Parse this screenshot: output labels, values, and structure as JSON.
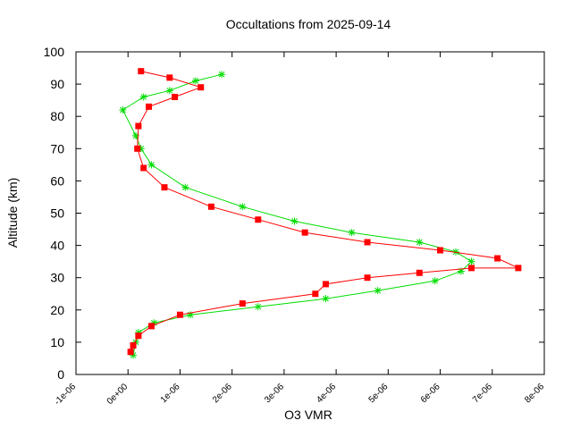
{
  "chart_data": {
    "type": "scatter",
    "title": "Occultations from 2025-09-14",
    "xlabel": "O3 VMR",
    "ylabel": "Altitude (km)",
    "xlim": [
      -1e-06,
      8e-06
    ],
    "ylim": [
      0,
      100
    ],
    "x_ticks": [
      -1e-06,
      0,
      1e-06,
      2e-06,
      3e-06,
      4e-06,
      5e-06,
      6e-06,
      7e-06,
      8e-06
    ],
    "x_tick_labels": [
      "-1e-06",
      "0e+00",
      "1e-06",
      "2e-06",
      "3e-06",
      "4e-06",
      "5e-06",
      "6e-06",
      "7e-06",
      "8e-06"
    ],
    "y_ticks": [
      0,
      10,
      20,
      30,
      40,
      50,
      60,
      70,
      80,
      90,
      100
    ],
    "y_tick_labels": [
      "0",
      "10",
      "20",
      "30",
      "40",
      "50",
      "60",
      "70",
      "80",
      "90",
      "100"
    ],
    "grid": false,
    "legend": "none",
    "series": [
      {
        "color": "#00dd00",
        "marker": "star",
        "x": [
          1e-07,
          1.5e-07,
          2e-07,
          5e-07,
          1.2e-06,
          2.5e-06,
          3.8e-06,
          4.8e-06,
          5.9e-06,
          6.4e-06,
          6.6e-06,
          6.3e-06,
          5.6e-06,
          4.3e-06,
          3.2e-06,
          2.2e-06,
          1.1e-06,
          4.5e-07,
          2.5e-07,
          1.5e-07,
          -1e-07,
          3e-07,
          8e-07,
          1.3e-06,
          1.8e-06
        ],
        "y": [
          6,
          10,
          13,
          16,
          18.5,
          21,
          23.5,
          26,
          29,
          32,
          35,
          38,
          41,
          44,
          47.5,
          52,
          58,
          65,
          70,
          74,
          82,
          86,
          88,
          91,
          93
        ]
      },
      {
        "color": "#ff0000",
        "marker": "square",
        "x": [
          5e-08,
          1e-07,
          2e-07,
          4.5e-07,
          1e-06,
          2.2e-06,
          3.6e-06,
          3.8e-06,
          4.6e-06,
          5.6e-06,
          6.6e-06,
          7.5e-06,
          7.1e-06,
          6e-06,
          4.6e-06,
          3.4e-06,
          2.5e-06,
          1.6e-06,
          7e-07,
          3e-07,
          1.8e-07,
          2e-07,
          4e-07,
          9e-07,
          1.4e-06,
          8e-07,
          2.5e-07
        ],
        "y": [
          7,
          9,
          12,
          15,
          18.5,
          22,
          25,
          28,
          30,
          31.5,
          33,
          33,
          36,
          38.5,
          41,
          44,
          48,
          52,
          58,
          64,
          70,
          77,
          83,
          86,
          89,
          92,
          94
        ]
      }
    ]
  }
}
